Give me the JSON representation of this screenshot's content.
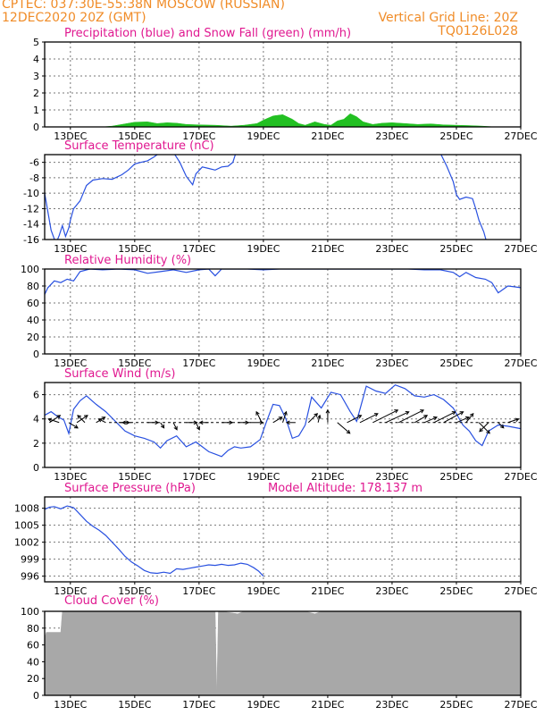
{
  "header": {
    "line1": "CPTEC:  037:30E-55:38N   MOSCOW (RUSSIAN)",
    "line2": "12DEC2020 20Z (GMT)",
    "grid_note": "Vertical Grid Line: 20Z",
    "code": "TQ0126L028"
  },
  "colors": {
    "header": "#f08c28",
    "title": "#e01890",
    "line": "#2850e0",
    "snow": "#22c022",
    "cloud": "#a8a8a8",
    "wind": "#000000"
  },
  "x_ticks": [
    "13DEC",
    "15DEC",
    "17DEC",
    "19DEC",
    "21DEC",
    "23DEC",
    "25DEC",
    "27DEC"
  ],
  "x_tick_days": [
    13,
    15,
    17,
    19,
    21,
    23,
    25,
    27
  ],
  "x_range": [
    12.2,
    27.0
  ],
  "chart_data": [
    {
      "id": "precip",
      "type": "area",
      "title": "Precipitation (blue) and Snow Fall (green) (mm/h)",
      "ylim": [
        0,
        5
      ],
      "y_ticks": [
        0,
        1,
        2,
        3,
        4,
        5
      ],
      "series": [
        {
          "name": "Snow Fall",
          "color": "green",
          "x": [
            12.2,
            14.0,
            14.3,
            14.6,
            15.0,
            15.4,
            15.7,
            16.0,
            16.3,
            16.6,
            17.0,
            17.5,
            18.0,
            18.4,
            18.8,
            19.0,
            19.3,
            19.6,
            19.9,
            20.1,
            20.3,
            20.6,
            20.9,
            21.1,
            21.3,
            21.5,
            21.7,
            21.9,
            22.1,
            22.4,
            22.7,
            23.0,
            23.4,
            23.8,
            24.2,
            24.6,
            25.0,
            25.4,
            25.8,
            26.2,
            27.0
          ],
          "values": [
            0,
            0,
            0.05,
            0.15,
            0.28,
            0.3,
            0.2,
            0.25,
            0.22,
            0.15,
            0.12,
            0.1,
            0.05,
            0.1,
            0.2,
            0.4,
            0.65,
            0.72,
            0.45,
            0.2,
            0.1,
            0.3,
            0.15,
            0.1,
            0.35,
            0.45,
            0.78,
            0.6,
            0.3,
            0.15,
            0.22,
            0.25,
            0.2,
            0.15,
            0.18,
            0.12,
            0.1,
            0.08,
            0.05,
            0,
            0
          ]
        }
      ]
    },
    {
      "id": "temp",
      "type": "line",
      "title": "Surface Temperature (nC)",
      "ylim": [
        -16,
        -5
      ],
      "y_ticks": [
        -16,
        -14,
        -12,
        -10,
        -8,
        -6
      ],
      "series": [
        {
          "segments": [
            {
              "x": [
                12.2,
                12.4,
                12.55,
                12.65,
                12.75,
                12.85,
                12.95,
                13.0,
                13.1,
                13.3,
                13.5,
                13.7,
                14.0,
                14.3,
                14.6,
                14.8,
                15.0,
                15.2,
                15.4,
                15.6,
                15.7,
                15.8
              ],
              "values": [
                -10,
                -14.8,
                -16.5,
                -15.5,
                -14.2,
                -15.6,
                -14.5,
                -13.5,
                -12.0,
                -11.0,
                -9.0,
                -8.3,
                -8.1,
                -8.2,
                -7.6,
                -7.0,
                -6.2,
                -6.0,
                -5.8,
                -5.3,
                -5.0,
                -4.6
              ]
            },
            {
              "x": [
                16.2,
                16.4,
                16.6,
                16.8,
                16.9,
                17.1,
                17.3,
                17.5,
                17.7,
                17.9,
                18.05,
                18.15
              ],
              "values": [
                -4.7,
                -6.0,
                -7.8,
                -8.9,
                -7.5,
                -6.6,
                -6.8,
                -7.0,
                -6.6,
                -6.5,
                -6.0,
                -4.7
              ]
            },
            {
              "x": [
                24.5,
                24.7,
                24.9,
                25.0,
                25.1,
                25.3,
                25.5,
                25.6,
                25.7,
                25.85,
                25.95
              ],
              "values": [
                -4.8,
                -6.5,
                -8.5,
                -10.2,
                -10.8,
                -10.5,
                -10.7,
                -12.0,
                -13.5,
                -15.0,
                -16.5
              ]
            }
          ]
        }
      ]
    },
    {
      "id": "rh",
      "type": "line",
      "title": "Relative Humidity (%)",
      "ylim": [
        0,
        100
      ],
      "y_ticks": [
        0,
        20,
        40,
        60,
        80,
        100
      ],
      "series": [
        {
          "x": [
            12.2,
            12.3,
            12.5,
            12.7,
            12.9,
            13.1,
            13.3,
            13.6,
            14.0,
            14.5,
            15.0,
            15.4,
            15.8,
            16.2,
            16.6,
            17.0,
            17.3,
            17.5,
            17.7,
            18.0,
            18.5,
            19.0,
            19.5,
            20.0,
            20.5,
            21.0,
            21.5,
            22.0,
            22.5,
            23.0,
            23.5,
            24.0,
            24.5,
            24.9,
            25.1,
            25.3,
            25.6,
            25.9,
            26.1,
            26.3,
            26.6,
            26.8,
            27.0
          ],
          "values": [
            70,
            78,
            86,
            84,
            88,
            86,
            97,
            100,
            99,
            100,
            99,
            95,
            97,
            99,
            96,
            99,
            100,
            92,
            100,
            100,
            100,
            99,
            100,
            100,
            100,
            100,
            100,
            100,
            100,
            100,
            100,
            99,
            99,
            96,
            91,
            96,
            90,
            88,
            84,
            72,
            80,
            79,
            78
          ]
        }
      ]
    },
    {
      "id": "wind",
      "type": "line",
      "title": "Surface Wind (m/s)",
      "ylim": [
        0,
        7
      ],
      "y_ticks": [
        0,
        2,
        4,
        6
      ],
      "series": [
        {
          "x": [
            12.2,
            12.4,
            12.6,
            12.8,
            12.95,
            13.1,
            13.3,
            13.5,
            13.8,
            14.1,
            14.4,
            14.7,
            15.0,
            15.3,
            15.6,
            15.8,
            16.0,
            16.3,
            16.6,
            16.9,
            17.1,
            17.3,
            17.5,
            17.7,
            17.9,
            18.1,
            18.3,
            18.6,
            18.9,
            19.1,
            19.3,
            19.5,
            19.7,
            19.9,
            20.1,
            20.3,
            20.5,
            20.8,
            21.1,
            21.4,
            21.7,
            21.9,
            22.2,
            22.5,
            22.8,
            23.1,
            23.4,
            23.7,
            24.0,
            24.3,
            24.6,
            24.9,
            25.2,
            25.4,
            25.6,
            25.8,
            26.0,
            26.3,
            26.6,
            27.0
          ],
          "values": [
            4.3,
            4.6,
            4.2,
            3.9,
            2.8,
            4.8,
            5.5,
            5.9,
            5.2,
            4.6,
            3.8,
            3.0,
            2.6,
            2.4,
            2.1,
            1.6,
            2.2,
            2.6,
            1.7,
            2.1,
            1.7,
            1.3,
            1.1,
            0.9,
            1.4,
            1.7,
            1.6,
            1.7,
            2.3,
            3.8,
            5.2,
            5.1,
            4.0,
            2.4,
            2.6,
            3.5,
            5.8,
            4.9,
            6.2,
            6.0,
            4.6,
            3.8,
            6.7,
            6.3,
            6.1,
            6.8,
            6.5,
            5.9,
            5.8,
            6.0,
            5.6,
            4.9,
            3.5,
            3.0,
            2.2,
            1.8,
            3.0,
            3.5,
            3.4,
            3.2
          ]
        }
      ]
    },
    {
      "id": "pressure",
      "type": "line",
      "title": "Surface Pressure (hPa)",
      "subtitle": "Model Altitude: 178.137 m",
      "ylim": [
        995,
        1010
      ],
      "y_ticks": [
        996,
        999,
        1002,
        1005,
        1008
      ],
      "series": [
        {
          "x": [
            12.2,
            12.35,
            12.5,
            12.7,
            12.9,
            13.1,
            13.3,
            13.5,
            13.7,
            13.9,
            14.1,
            14.3,
            14.5,
            14.7,
            14.9,
            15.1,
            15.3,
            15.5,
            15.7,
            15.9,
            16.1,
            16.3,
            16.5,
            16.7,
            16.9,
            17.1,
            17.3,
            17.5,
            17.7,
            17.9,
            18.1,
            18.3,
            18.5,
            18.7,
            18.85,
            19.0
          ],
          "values": [
            1007.8,
            1008.2,
            1008.3,
            1007.9,
            1008.4,
            1008.1,
            1006.9,
            1005.7,
            1004.8,
            1004.1,
            1003.2,
            1002.0,
            1000.8,
            999.5,
            998.5,
            997.8,
            997.0,
            996.6,
            996.5,
            996.7,
            996.5,
            997.3,
            997.2,
            997.4,
            997.6,
            997.8,
            998.0,
            997.9,
            998.1,
            997.9,
            998.0,
            998.3,
            998.1,
            997.5,
            996.9,
            996.0
          ]
        }
      ]
    },
    {
      "id": "cloud",
      "type": "area",
      "title": "Cloud Cover (%)",
      "ylim": [
        0,
        100
      ],
      "y_ticks": [
        0,
        20,
        40,
        60,
        80,
        100
      ],
      "series": [
        {
          "x": [
            12.2,
            12.25,
            12.3,
            12.7,
            12.75,
            12.8,
            17.5,
            17.55,
            17.6,
            17.7,
            18.2,
            18.4,
            18.6,
            20.3,
            20.6,
            20.8,
            21.0,
            27.0
          ],
          "values": [
            68,
            75,
            75,
            75,
            100,
            100,
            100,
            0,
            100,
            100,
            97,
            100,
            100,
            100,
            97,
            100,
            100,
            100
          ]
        }
      ]
    }
  ]
}
